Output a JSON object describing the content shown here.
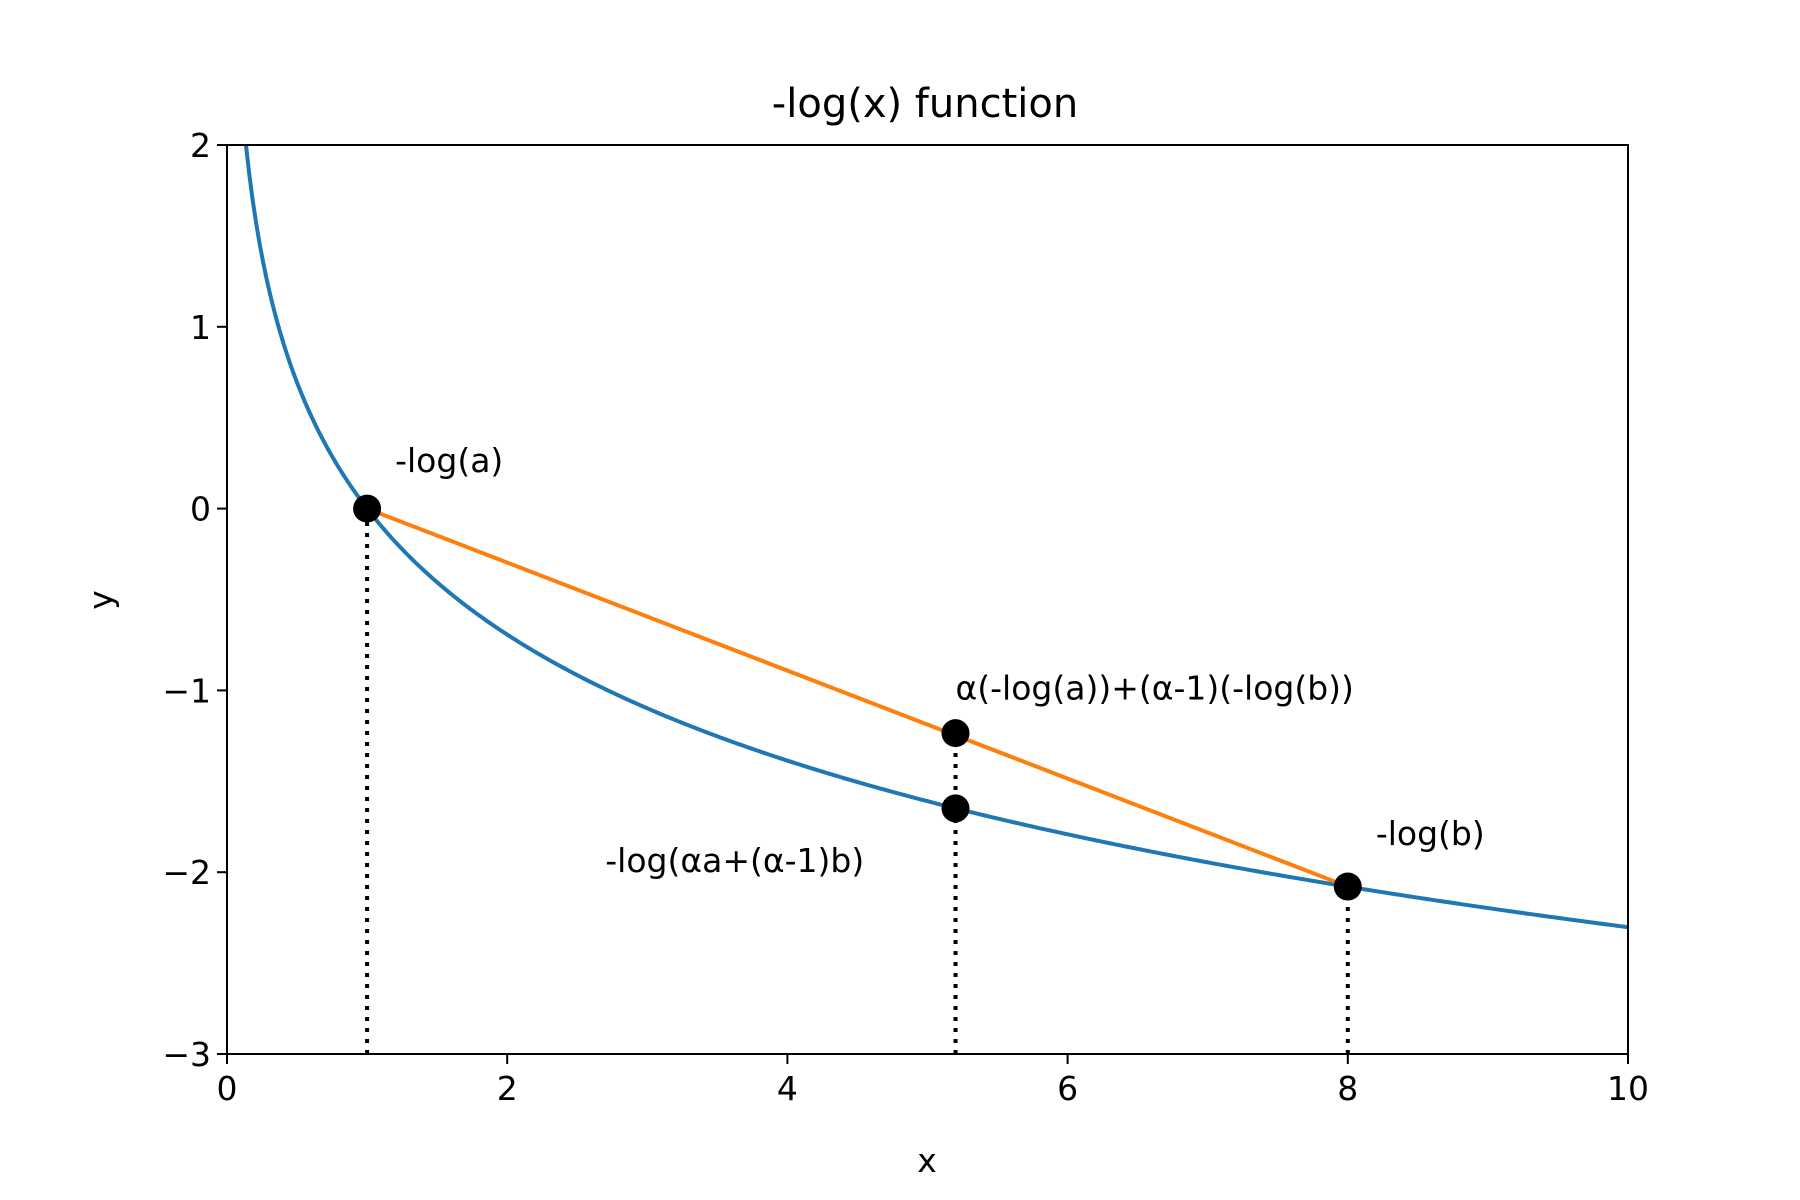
{
  "chart_data": {
    "type": "line",
    "title": "-log(x) function",
    "xlabel": "x",
    "ylabel": "y",
    "xlim": [
      0,
      10
    ],
    "ylim": [
      -3,
      2
    ],
    "xticks": [
      0,
      2,
      4,
      6,
      8,
      10
    ],
    "yticks": [
      -3,
      -2,
      -1,
      0,
      1,
      2
    ],
    "xtick_labels": [
      "0",
      "2",
      "4",
      "6",
      "8",
      "10"
    ],
    "ytick_labels": [
      "−3",
      "−2",
      "−1",
      "0",
      "1",
      "2"
    ],
    "grid": false,
    "series": [
      {
        "function": "-ln(x)",
        "x_range": [
          0.135,
          10
        ],
        "color": "#1f77b4"
      },
      {
        "x": [
          1,
          8
        ],
        "y": [
          0,
          -2.079
        ],
        "color": "#ff7f0e"
      }
    ],
    "points": [
      {
        "x": 1,
        "y": 0
      },
      {
        "x": 5.2,
        "y": -1.235
      },
      {
        "x": 5.2,
        "y": -1.649
      },
      {
        "x": 8,
        "y": -2.079
      }
    ],
    "dotted_lines": [
      {
        "x": 1,
        "y_from": -3,
        "y_to": 0
      },
      {
        "x": 5.2,
        "y_from": -3,
        "y_to": -1.235
      },
      {
        "x": 8,
        "y_from": -3,
        "y_to": -2.079
      }
    ],
    "annotations": [
      {
        "text": "-log(a)",
        "x": 1.2,
        "y": 0.2
      },
      {
        "text": "α(-log(a))+(α-1)(-log(b))",
        "x": 5.2,
        "y": -1.05
      },
      {
        "text": "-log(αa+(α-1)b)",
        "x": 2.7,
        "y": -2.0
      },
      {
        "text": "-log(b)",
        "x": 8.2,
        "y": -1.85
      }
    ],
    "point_color": "#000000"
  }
}
